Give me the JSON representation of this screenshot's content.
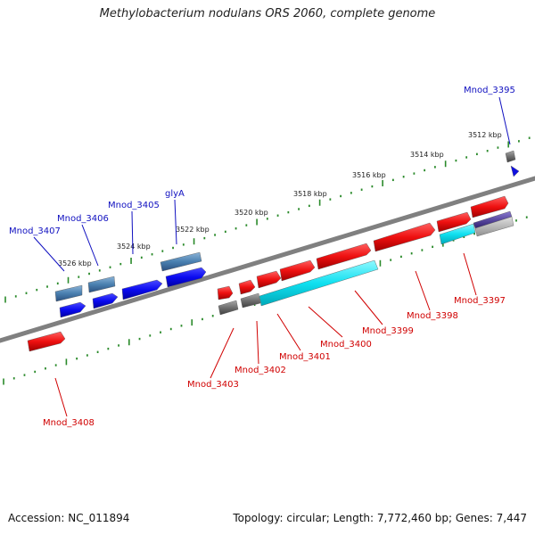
{
  "title": "Methylobacterium nodulans ORS 2060, complete genome",
  "accession_label": "Accession: NC_011894",
  "summary_label": "Topology: circular; Length: 7,772,460 bp; Genes: 7,447",
  "scale_labels": [
    "3512 kbp",
    "3514 kbp",
    "3516 kbp",
    "3518 kbp",
    "3520 kbp",
    "3522 kbp",
    "3524 kbp",
    "3526 kbp"
  ],
  "genes_reverse_strand": [
    "Mnod_3395",
    "Mnod_3405",
    "glyA",
    "Mnod_3406",
    "Mnod_3407"
  ],
  "genes_forward_strand": [
    "Mnod_3397",
    "Mnod_3398",
    "Mnod_3399",
    "Mnod_3400",
    "Mnod_3401",
    "Mnod_3402",
    "Mnod_3403",
    "Mnod_3408"
  ],
  "colors": {
    "reverse_label": "#1010c0",
    "forward_label": "#d00000",
    "backbone": "#808080",
    "scale_ticks": "#2a8a2a",
    "gene_blue": "#0a0af0",
    "gene_steel": "#4a80b0",
    "gene_red": "#ee1010",
    "gene_cyan": "#10e0f0",
    "gene_gray": "#707070",
    "gene_purple": "#5a4aa0"
  }
}
